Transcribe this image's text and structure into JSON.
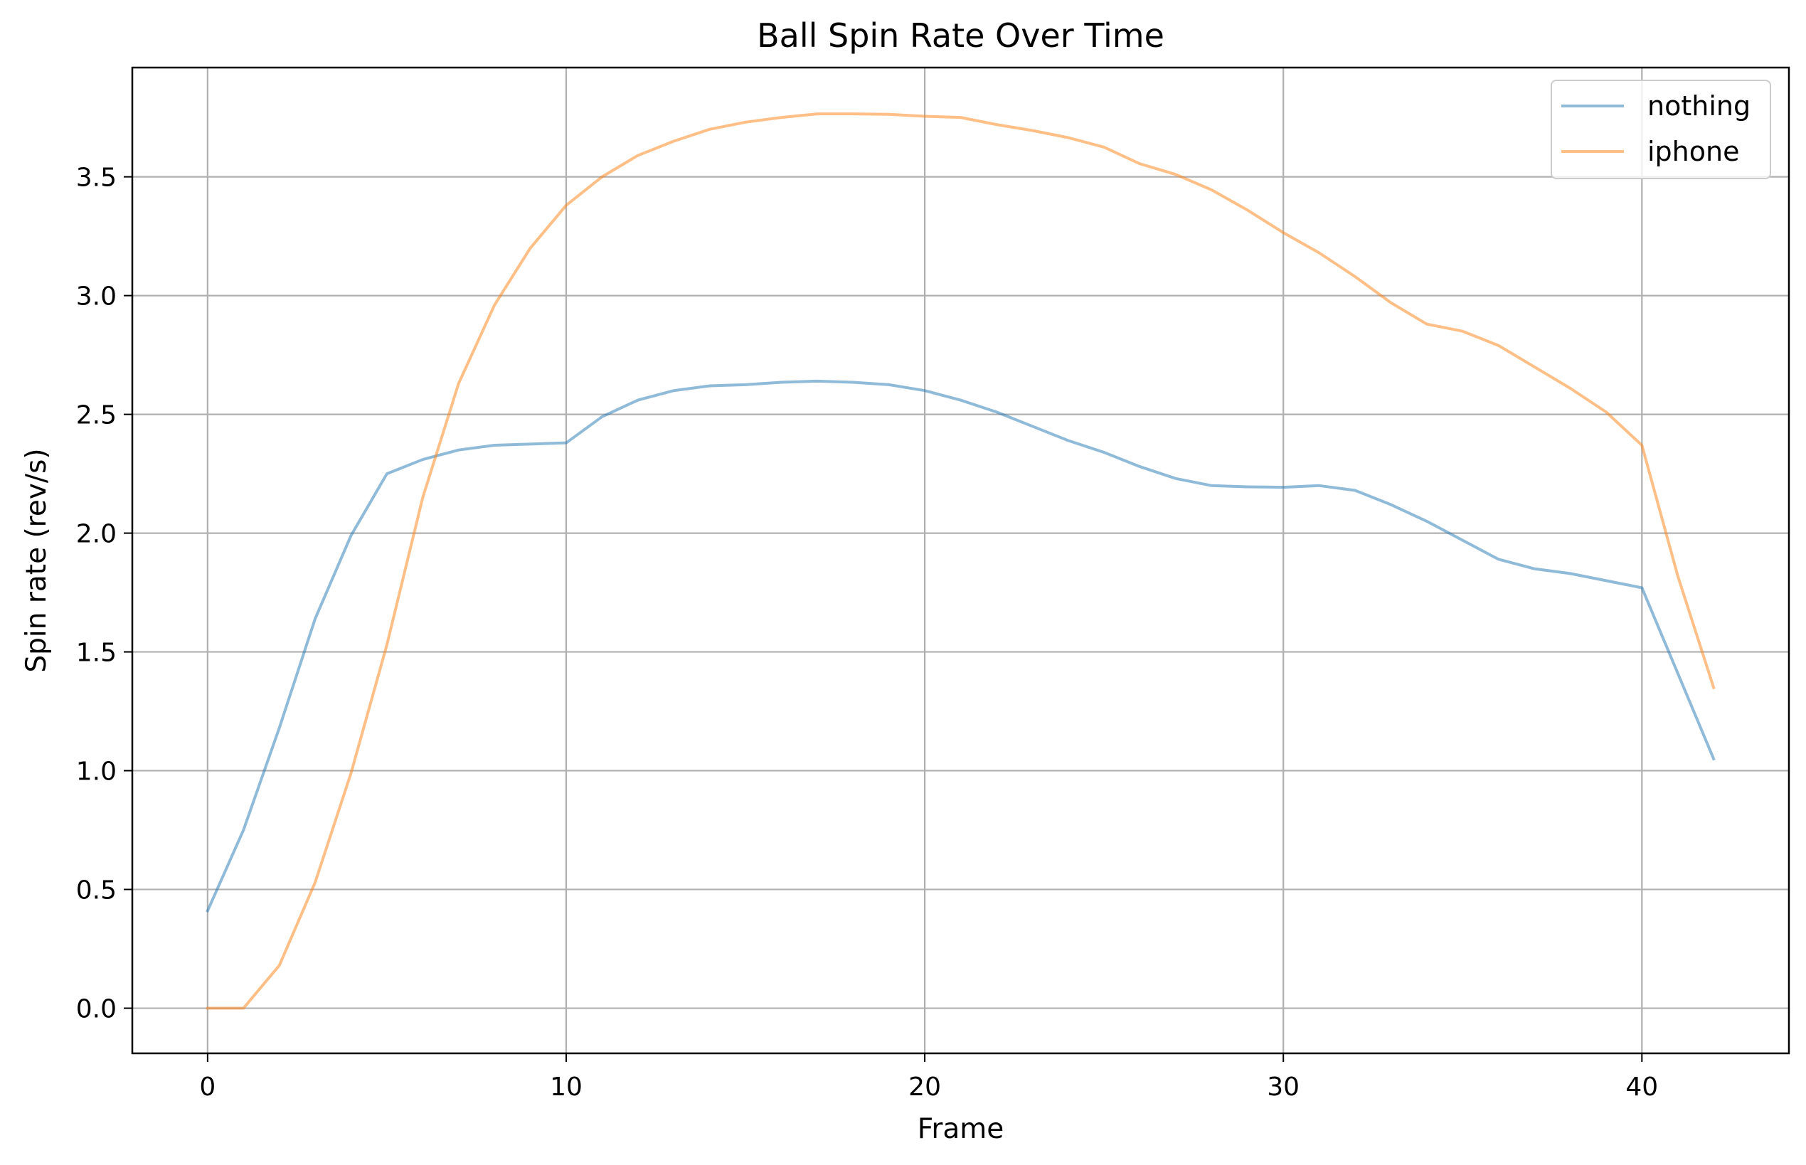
{
  "chart_data": {
    "type": "line",
    "title": "Ball Spin Rate Over Time",
    "xlabel": "Frame",
    "ylabel": "Spin rate (rev/s)",
    "xlim": [
      -2.1,
      44.1
    ],
    "ylim": [
      -0.19,
      3.96
    ],
    "xticks": [
      0,
      10,
      20,
      30,
      40
    ],
    "xtick_labels": [
      "0",
      "10",
      "20",
      "30",
      "40"
    ],
    "yticks": [
      0.0,
      0.5,
      1.0,
      1.5,
      2.0,
      2.5,
      3.0,
      3.5
    ],
    "ytick_labels": [
      "0.0",
      "0.5",
      "1.0",
      "1.5",
      "2.0",
      "2.5",
      "3.0",
      "3.5"
    ],
    "grid": true,
    "legend_position": "upper right",
    "x": [
      0,
      1,
      2,
      3,
      4,
      5,
      6,
      7,
      8,
      9,
      10,
      11,
      12,
      13,
      14,
      15,
      16,
      17,
      18,
      19,
      20,
      21,
      22,
      23,
      24,
      25,
      26,
      27,
      28,
      29,
      30,
      31,
      32,
      33,
      34,
      35,
      36,
      37,
      38,
      39,
      40,
      41,
      42
    ],
    "series": [
      {
        "name": "nothing",
        "color": "#1f77b4",
        "values": [
          0.41,
          0.75,
          1.18,
          1.64,
          1.99,
          2.25,
          2.31,
          2.35,
          2.37,
          2.375,
          2.38,
          2.49,
          2.56,
          2.6,
          2.62,
          2.625,
          2.635,
          2.64,
          2.635,
          2.625,
          2.6,
          2.56,
          2.51,
          2.45,
          2.39,
          2.34,
          2.28,
          2.23,
          2.2,
          2.195,
          2.193,
          2.2,
          2.18,
          2.12,
          2.05,
          1.97,
          1.89,
          1.85,
          1.83,
          1.8,
          1.77,
          1.41,
          1.05
        ]
      },
      {
        "name": "iphone",
        "color": "#ff7f0e",
        "values": [
          0.0,
          0.0,
          0.18,
          0.53,
          0.99,
          1.53,
          2.15,
          2.63,
          2.96,
          3.2,
          3.38,
          3.5,
          3.59,
          3.65,
          3.7,
          3.73,
          3.75,
          3.765,
          3.765,
          3.763,
          3.755,
          3.75,
          3.72,
          3.695,
          3.665,
          3.625,
          3.555,
          3.51,
          3.445,
          3.36,
          3.265,
          3.18,
          3.08,
          2.97,
          2.88,
          2.85,
          2.79,
          2.7,
          2.61,
          2.51,
          2.37,
          1.82,
          1.35
        ]
      }
    ]
  }
}
